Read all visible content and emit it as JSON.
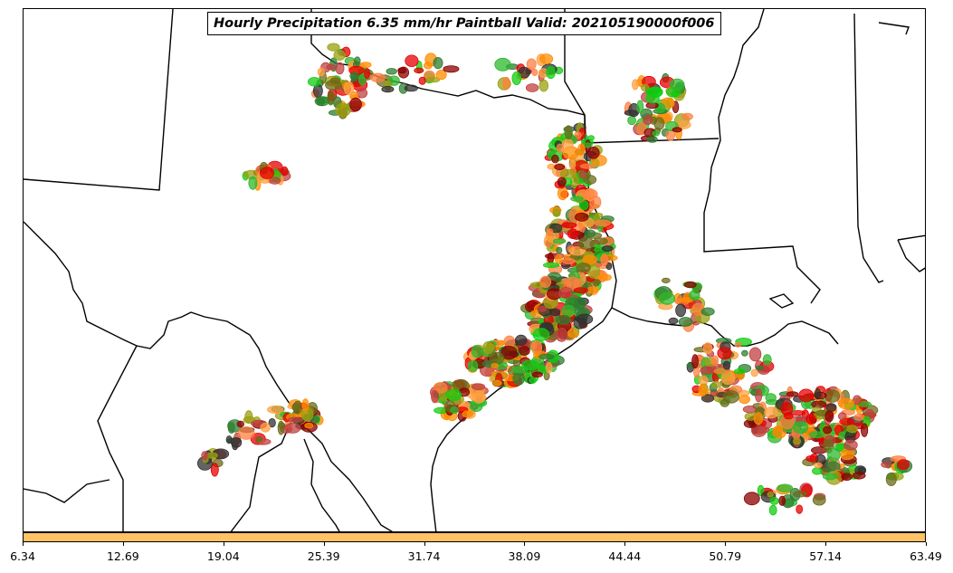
{
  "title": "Hourly Precipitation 6.35 mm/hr Paintball Valid: 202105190000f006",
  "colorbar": {
    "color": "#ffc266",
    "ticks": [
      "6.34",
      "12.69",
      "19.04",
      "25.39",
      "31.74",
      "38.09",
      "44.44",
      "50.79",
      "57.14",
      "63.49"
    ]
  },
  "member_colors": [
    "#ff8c00",
    "#e60000",
    "#2db82d",
    "#8b0000",
    "#9aa010",
    "#2e7d32",
    "#ff7f3f",
    "#6b6b1a",
    "#303030",
    "#ffa040",
    "#c04040",
    "#11cc11"
  ]
}
